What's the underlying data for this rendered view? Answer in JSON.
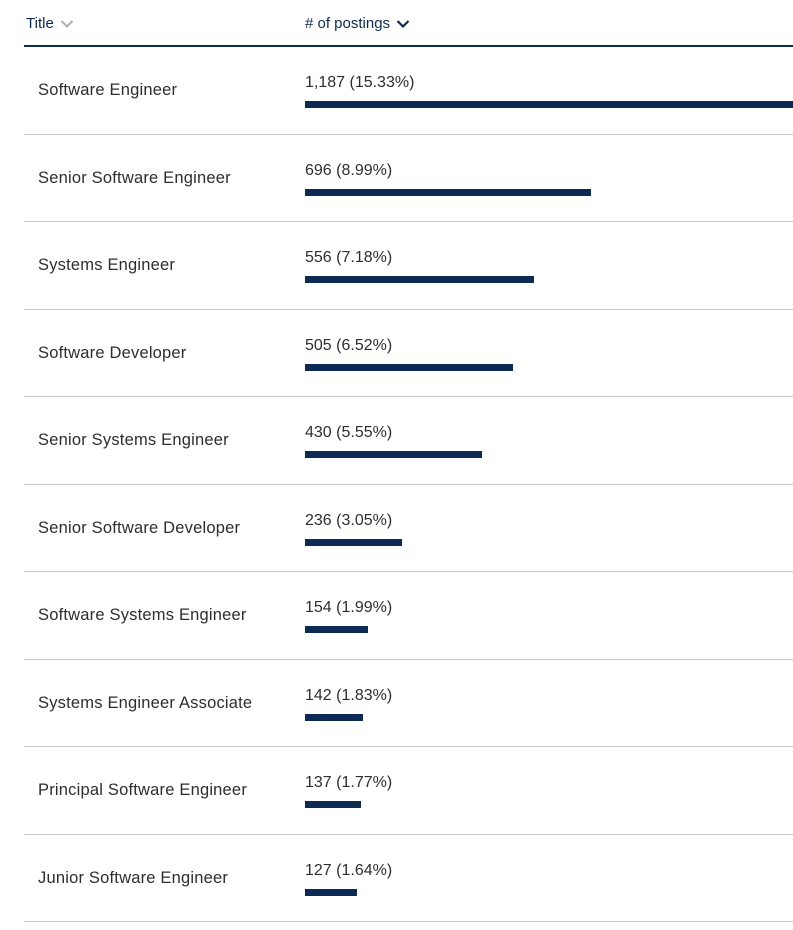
{
  "header": {
    "title_label": "Title",
    "count_label": "# of postings",
    "title_sort_icon": "chevron-down-icon",
    "count_sort_icon": "chevron-down-icon"
  },
  "colors": {
    "accent": "#0c2a54",
    "divider": "#c8c8c8",
    "text": "#2e2e2e",
    "inactive_icon": "#b0b0b0"
  },
  "chart_data": {
    "type": "bar",
    "orientation": "horizontal",
    "categories": [
      "Software Engineer",
      "Senior Software Engineer",
      "Systems Engineer",
      "Software Developer",
      "Senior Systems Engineer",
      "Senior Software Developer",
      "Software Systems Engineer",
      "Systems Engineer Associate",
      "Principal Software Engineer",
      "Junior Software Engineer"
    ],
    "values": [
      1187,
      696,
      556,
      505,
      430,
      236,
      154,
      142,
      137,
      127
    ],
    "percents": [
      "15.33%",
      "8.99%",
      "7.18%",
      "6.52%",
      "5.55%",
      "3.05%",
      "1.99%",
      "1.83%",
      "1.77%",
      "1.64%"
    ]
  },
  "rows": [
    {
      "title": "Software Engineer",
      "count_text": "1,187 (15.33%)"
    },
    {
      "title": "Senior Software Engineer",
      "count_text": "696 (8.99%)"
    },
    {
      "title": "Systems Engineer",
      "count_text": "556 (7.18%)"
    },
    {
      "title": "Software Developer",
      "count_text": "505 (6.52%)"
    },
    {
      "title": "Senior Systems Engineer",
      "count_text": "430 (5.55%)"
    },
    {
      "title": "Senior Software Developer",
      "count_text": "236 (3.05%)"
    },
    {
      "title": "Software Systems Engineer",
      "count_text": "154 (1.99%)"
    },
    {
      "title": "Systems Engineer Associate",
      "count_text": "142 (1.83%)"
    },
    {
      "title": "Principal Software Engineer",
      "count_text": "137 (1.77%)"
    },
    {
      "title": "Junior Software Engineer",
      "count_text": "127 (1.64%)"
    }
  ]
}
